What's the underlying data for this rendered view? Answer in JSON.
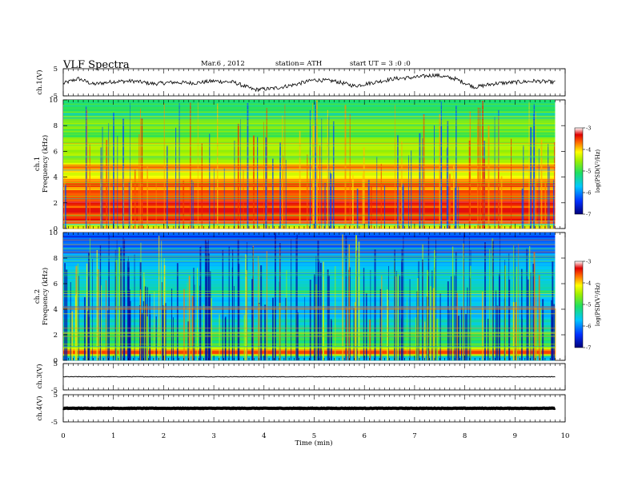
{
  "header": {
    "title": "VLF  Spectra",
    "date": "Mar.6  , 2012",
    "station": "station= ATH",
    "start": "start  UT  =   3  :0  :0"
  },
  "chart_data": [
    {
      "type": "line",
      "id": "ch1-waveform",
      "ylabel": "ch.1(V)",
      "ylim": [
        -5,
        5
      ],
      "yticks": [
        "5",
        "-5"
      ],
      "x": [
        0,
        0.3,
        0.6,
        1.0,
        1.4,
        1.8,
        2.2,
        2.6,
        3.0,
        3.4,
        3.8,
        4.2,
        4.6,
        5.0,
        5.4,
        5.8,
        6.2,
        6.6,
        7.0,
        7.4,
        7.8,
        8.2,
        8.6,
        9.0,
        9.4,
        9.8
      ],
      "values": [
        -0.5,
        1.5,
        -0.8,
        0.3,
        0.5,
        -0.6,
        0.0,
        -0.3,
        0.5,
        0.0,
        -3.0,
        -2.5,
        -1.0,
        1.0,
        0.5,
        -1.5,
        0.0,
        1.5,
        2.0,
        3.0,
        1.5,
        -2.0,
        -0.5,
        0.0,
        0.5,
        0.0
      ]
    },
    {
      "type": "heatmap",
      "id": "ch1-spectrogram",
      "ylabel_top": "ch.1",
      "ylabel": "Frequency  (kHz)",
      "ylim": [
        0,
        10
      ],
      "yticks": [
        "0",
        "2",
        "4",
        "6",
        "8",
        "10"
      ],
      "colorbar": {
        "label": "log(PSD(V²/Hz)",
        "ticks": [
          "-3",
          "-4",
          "-5",
          "-6",
          "-7"
        ],
        "range": [
          -7,
          -3
        ]
      },
      "band_freqs_khz": [
        0.2,
        0.6,
        1.0,
        1.4,
        1.8,
        2.0,
        2.4,
        3.0,
        3.4,
        3.8,
        4.4,
        4.8,
        5.2,
        5.8,
        6.2,
        6.8,
        7.4,
        8.0,
        8.6,
        9.2,
        9.8
      ],
      "band_log_psd": [
        -4.2,
        -3.3,
        -3.6,
        -3.5,
        -3.6,
        -3.4,
        -3.6,
        -3.7,
        -3.6,
        -3.8,
        -4.3,
        -3.7,
        -4.5,
        -4.6,
        -4.3,
        -4.7,
        -4.9,
        -4.6,
        -5.0,
        -5.0,
        -5.1
      ]
    },
    {
      "type": "heatmap",
      "id": "ch2-spectrogram",
      "ylabel_top": "ch.2",
      "ylabel": "Frequency  (kHz)",
      "ylim": [
        0,
        10
      ],
      "yticks": [
        "0",
        "2",
        "4",
        "6",
        "8",
        "10"
      ],
      "colorbar": {
        "label": "log(PSD(V²/Hz)",
        "ticks": [
          "-3",
          "-4",
          "-5",
          "-6",
          "-7"
        ],
        "range": [
          -7,
          -3
        ]
      },
      "band_freqs_khz": [
        0.2,
        0.6,
        1.0,
        1.4,
        1.8,
        2.4,
        3.0,
        3.6,
        4.2,
        4.8,
        5.4,
        6.0,
        6.6,
        7.2,
        7.8,
        8.4,
        9.0,
        9.6
      ],
      "band_log_psd": [
        -5.8,
        -3.6,
        -4.3,
        -5.2,
        -5.1,
        -5.3,
        -5.4,
        -5.8,
        -5.9,
        -5.7,
        -5.4,
        -5.5,
        -5.6,
        -5.8,
        -5.9,
        -6.0,
        -6.2,
        -6.3
      ]
    },
    {
      "type": "line",
      "id": "ch3-waveform",
      "ylabel": "ch.3(V)",
      "ylim": [
        -5,
        5
      ],
      "yticks": [
        "5",
        "-5"
      ],
      "x": [
        0,
        9.8
      ],
      "values": [
        0,
        0
      ]
    },
    {
      "type": "line",
      "id": "ch4-waveform",
      "ylabel": "ch.4(V)",
      "ylim": [
        -5,
        5
      ],
      "yticks": [
        "5",
        "-5"
      ],
      "x": [
        0,
        9.8
      ],
      "values": [
        0,
        0
      ]
    }
  ],
  "xaxis": {
    "xlabel": "Time  (min)",
    "xlim": [
      0,
      10
    ],
    "data_end": 9.8,
    "ticks": [
      "0",
      "1",
      "2",
      "3",
      "4",
      "5",
      "6",
      "7",
      "8",
      "9",
      "10"
    ]
  }
}
